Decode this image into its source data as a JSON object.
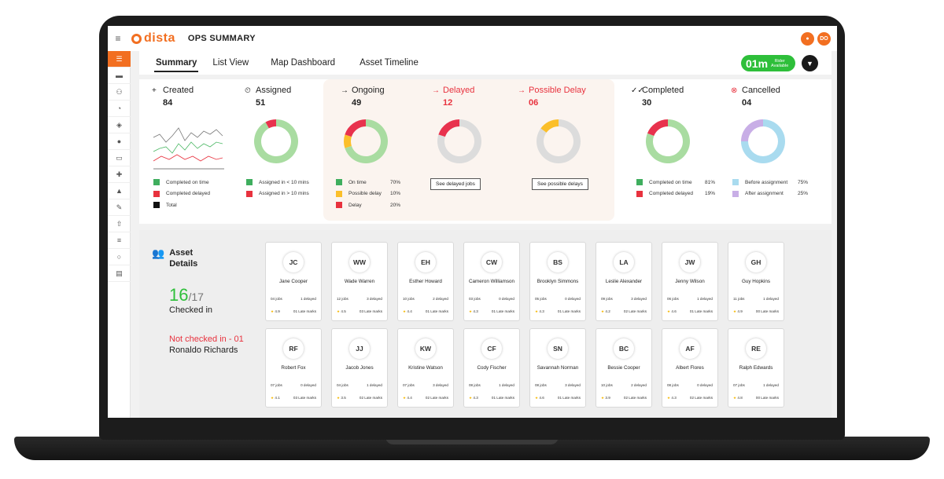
{
  "app": {
    "brand": "dista",
    "page_title": "OPS SUMMARY",
    "user_initials": "DO",
    "hamburger": "≡"
  },
  "tabs": [
    {
      "label": "Summary",
      "active": true
    },
    {
      "label": "List View"
    },
    {
      "label": "Map Dashboard"
    },
    {
      "label": "Asset Timeline"
    }
  ],
  "rider": {
    "count": "01m",
    "label_line1": "Rider",
    "label_line2": "Available"
  },
  "sidebar_icons": [
    "list-icon",
    "store-icon",
    "team-icon",
    "pie-chart-icon",
    "route-icon",
    "user-icon",
    "image-icon",
    "puzzle-icon",
    "bell-icon",
    "wrench-icon",
    "upload-icon",
    "rows-icon",
    "bulb-icon",
    "message-icon"
  ],
  "stats": {
    "created": {
      "label": "Created",
      "value": "84",
      "icon": "+",
      "legend": [
        {
          "label": "Completed on time",
          "color": "#3fae5e"
        },
        {
          "label": "Completed delayed",
          "color": "#e8323e"
        },
        {
          "label": "Total",
          "color": "#111111"
        }
      ]
    },
    "assigned": {
      "label": "Assigned",
      "value": "51",
      "icon": "⏲",
      "legend": [
        {
          "label": "Assigned in < 10 mins",
          "color": "#3fae5e"
        },
        {
          "label": "Assigned in > 10 mins",
          "color": "#e8323e"
        }
      ],
      "segments": [
        {
          "value": 0.92,
          "color": "#a9dca1"
        },
        {
          "value": 0.08,
          "color": "#e8324d"
        }
      ]
    },
    "ongoing": {
      "label": "Ongoing",
      "value": "49",
      "icon": "→",
      "legend": [
        {
          "label": "On time",
          "pct": "70%",
          "color": "#3fae5e"
        },
        {
          "label": "Possible delay",
          "pct": "10%",
          "color": "#fbbf2a"
        },
        {
          "label": "Delay",
          "pct": "20%",
          "color": "#e8323e"
        }
      ],
      "segments": [
        {
          "value": 0.7,
          "color": "#a9dca1"
        },
        {
          "value": 0.1,
          "color": "#fbbf2a"
        },
        {
          "value": 0.2,
          "color": "#e8324d"
        }
      ]
    },
    "delayed": {
      "label": "Delayed",
      "value": "12",
      "icon": "→",
      "button": "See delayed jobs",
      "segments": [
        {
          "value": 0.8,
          "color": "#dcdcdc"
        },
        {
          "value": 0.2,
          "color": "#e8324d"
        }
      ]
    },
    "possible_delay": {
      "label": "Possible Delay",
      "value": "06",
      "icon": "→",
      "button": "See possible delays",
      "segments": [
        {
          "value": 0.85,
          "color": "#dcdcdc"
        },
        {
          "value": 0.15,
          "color": "#fbbf2a"
        }
      ]
    },
    "completed": {
      "label": "Completed",
      "value": "30",
      "icon": "✓✓",
      "legend": [
        {
          "label": "Completed on time",
          "pct": "81%",
          "color": "#3fae5e"
        },
        {
          "label": "Completed delayed",
          "pct": "19%",
          "color": "#e8323e"
        }
      ],
      "segments": [
        {
          "value": 0.81,
          "color": "#a9dca1"
        },
        {
          "value": 0.19,
          "color": "#e8324d"
        }
      ]
    },
    "cancelled": {
      "label": "Cancelled",
      "value": "04",
      "icon": "⊗",
      "legend": [
        {
          "label": "Before assignment",
          "pct": "75%",
          "color": "#a9dbef"
        },
        {
          "label": "After assignment",
          "pct": "25%",
          "color": "#c8aee6"
        }
      ],
      "segments": [
        {
          "value": 0.75,
          "color": "#a9dbef"
        },
        {
          "value": 0.25,
          "color": "#c8aee6"
        }
      ]
    }
  },
  "assets": {
    "title_line1": "Asset",
    "title_line2": "Details",
    "checked_in_count": "16",
    "checked_in_total": "/17",
    "checked_in_label": "Checked in",
    "not_checked_label": "Not checked in - 01",
    "not_checked_name": "Ronaldo Richards",
    "riders": [
      {
        "initials": "JC",
        "name": "Jane Cooper",
        "jobs": "04 jobs",
        "delayed": "1 delayed",
        "rating": "4.9",
        "late": "01 Late marks"
      },
      {
        "initials": "WW",
        "name": "Wade Warren",
        "jobs": "12 jobs",
        "delayed": "3 delayed",
        "rating": "4.5",
        "late": "03 Late marks"
      },
      {
        "initials": "EH",
        "name": "Esther Howard",
        "jobs": "10 jobs",
        "delayed": "2 delayed",
        "rating": "4.4",
        "late": "01 Late marks"
      },
      {
        "initials": "CW",
        "name": "Cameron Williamson",
        "jobs": "03 jobs",
        "delayed": "0 delayed",
        "rating": "4.3",
        "late": "01 Late marks"
      },
      {
        "initials": "BS",
        "name": "Brooklyn Simmons",
        "jobs": "05 jobs",
        "delayed": "0 delayed",
        "rating": "4.3",
        "late": "01 Late marks"
      },
      {
        "initials": "LA",
        "name": "Leslie Alexander",
        "jobs": "09 jobs",
        "delayed": "3 delayed",
        "rating": "4.2",
        "late": "02 Late marks"
      },
      {
        "initials": "JW",
        "name": "Jenny Wilson",
        "jobs": "06 jobs",
        "delayed": "1 delayed",
        "rating": "4.6",
        "late": "01 Late marks"
      },
      {
        "initials": "GH",
        "name": "Guy Hopkins",
        "jobs": "11 jobs",
        "delayed": "1 delayed",
        "rating": "4.9",
        "late": "00 Late marks"
      },
      {
        "initials": "RF",
        "name": "Robert Fox",
        "jobs": "07 jobs",
        "delayed": "0 delayed",
        "rating": "4.1",
        "late": "03 Late marks"
      },
      {
        "initials": "JJ",
        "name": "Jacob Jones",
        "jobs": "04 jobs",
        "delayed": "1 delayed",
        "rating": "3.5",
        "late": "02 Late marks"
      },
      {
        "initials": "KW",
        "name": "Kristine Watson",
        "jobs": "07 jobs",
        "delayed": "3 delayed",
        "rating": "4.4",
        "late": "02 Late marks"
      },
      {
        "initials": "CF",
        "name": "Cody Fischer",
        "jobs": "08 jobs",
        "delayed": "1 delayed",
        "rating": "4.3",
        "late": "01 Late marks"
      },
      {
        "initials": "SN",
        "name": "Savannah Norman",
        "jobs": "08 jobs",
        "delayed": "3 delayed",
        "rating": "4.6",
        "late": "01 Late marks"
      },
      {
        "initials": "BC",
        "name": "Bessie Cooper",
        "jobs": "10 jobs",
        "delayed": "2 delayed",
        "rating": "3.9",
        "late": "02 Late marks"
      },
      {
        "initials": "AF",
        "name": "Albert Flores",
        "jobs": "08 jobs",
        "delayed": "0 delayed",
        "rating": "4.3",
        "late": "02 Late marks"
      },
      {
        "initials": "RE",
        "name": "Ralph Edwards",
        "jobs": "07 jobs",
        "delayed": "1 delayed",
        "rating": "4.8",
        "late": "00 Late marks"
      }
    ]
  }
}
